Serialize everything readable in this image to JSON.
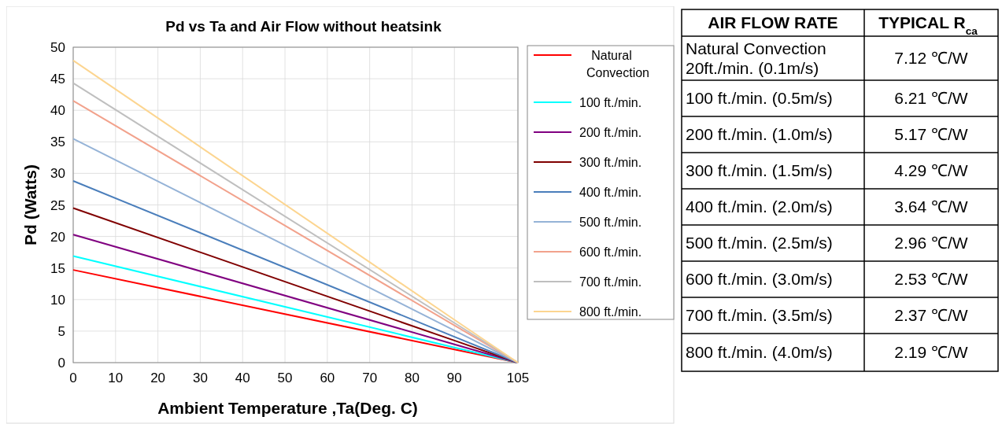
{
  "chart_data": [
    {
      "type": "line",
      "title": "Pd vs Ta and Air Flow without heatsink",
      "xlabel": "Ambient Temperature ,Ta(Deg. C)",
      "ylabel": "Pd (Watts)",
      "x": [
        0,
        90,
        105
      ],
      "series": [
        {
          "name": "Natural Convection",
          "color": "#ff0000",
          "values": [
            14.7,
            2.1,
            0
          ]
        },
        {
          "name": "100 ft./min.",
          "color": "#00ffff",
          "values": [
            16.9,
            2.4,
            0
          ]
        },
        {
          "name": "200 ft./min.",
          "color": "#800080",
          "values": [
            20.3,
            2.9,
            0
          ]
        },
        {
          "name": "300 ft./min.",
          "color": "#800000",
          "values": [
            24.5,
            3.5,
            0
          ]
        },
        {
          "name": "400 ft./min.",
          "color": "#4a7ebb",
          "values": [
            28.8,
            4.1,
            0
          ]
        },
        {
          "name": "500 ft./min.",
          "color": "#95b3d7",
          "values": [
            35.5,
            5.1,
            0
          ]
        },
        {
          "name": "600 ft./min.",
          "color": "#f2a28c",
          "values": [
            41.5,
            5.9,
            0
          ]
        },
        {
          "name": "700 ft./min.",
          "color": "#bfbfbf",
          "values": [
            44.3,
            6.3,
            0
          ]
        },
        {
          "name": "800 ft./min.",
          "color": "#fcd590",
          "values": [
            47.9,
            6.8,
            0
          ]
        }
      ],
      "xlim": [
        0,
        105
      ],
      "xticks": [
        0,
        10,
        20,
        30,
        40,
        50,
        60,
        70,
        80,
        90,
        105
      ],
      "ylim": [
        0,
        50
      ],
      "yticks": [
        0,
        5,
        10,
        15,
        20,
        25,
        30,
        35,
        40,
        45,
        50
      ],
      "grid": true,
      "legend": "right",
      "marker": "none",
      "line_style": "solid"
    },
    {
      "type": "other",
      "categories": [
        "AIR FLOW RATE",
        "TYPICAL R$_{ca}$"
      ],
      "y_categories": [
        "Natural Convection\n20ft./min. (0.1m/s)",
        "100 ft./min. (0.5m/s)",
        "200 ft./min. (1.0m/s)",
        "300 ft./min. (1.5m/s)",
        "400 ft./min. (2.0m/s)",
        "500 ft./min. (2.5m/s)",
        "600 ft./min. (3.0m/s)",
        "700 ft./min. (3.5m/s)",
        "800 ft./min. (4.0m/s)"
      ],
      "cell_labels": [
        [
          "7.12 ℃/W"
        ],
        [
          "6.21 ℃/W"
        ],
        [
          "5.17 ℃/W"
        ],
        [
          "4.29 ℃/W"
        ],
        [
          "3.64 ℃/W"
        ],
        [
          "2.96 ℃/W"
        ],
        [
          "2.53 ℃/W"
        ],
        [
          "2.37 ℃/W"
        ],
        [
          "2.19 ℃/W"
        ]
      ]
    }
  ]
}
